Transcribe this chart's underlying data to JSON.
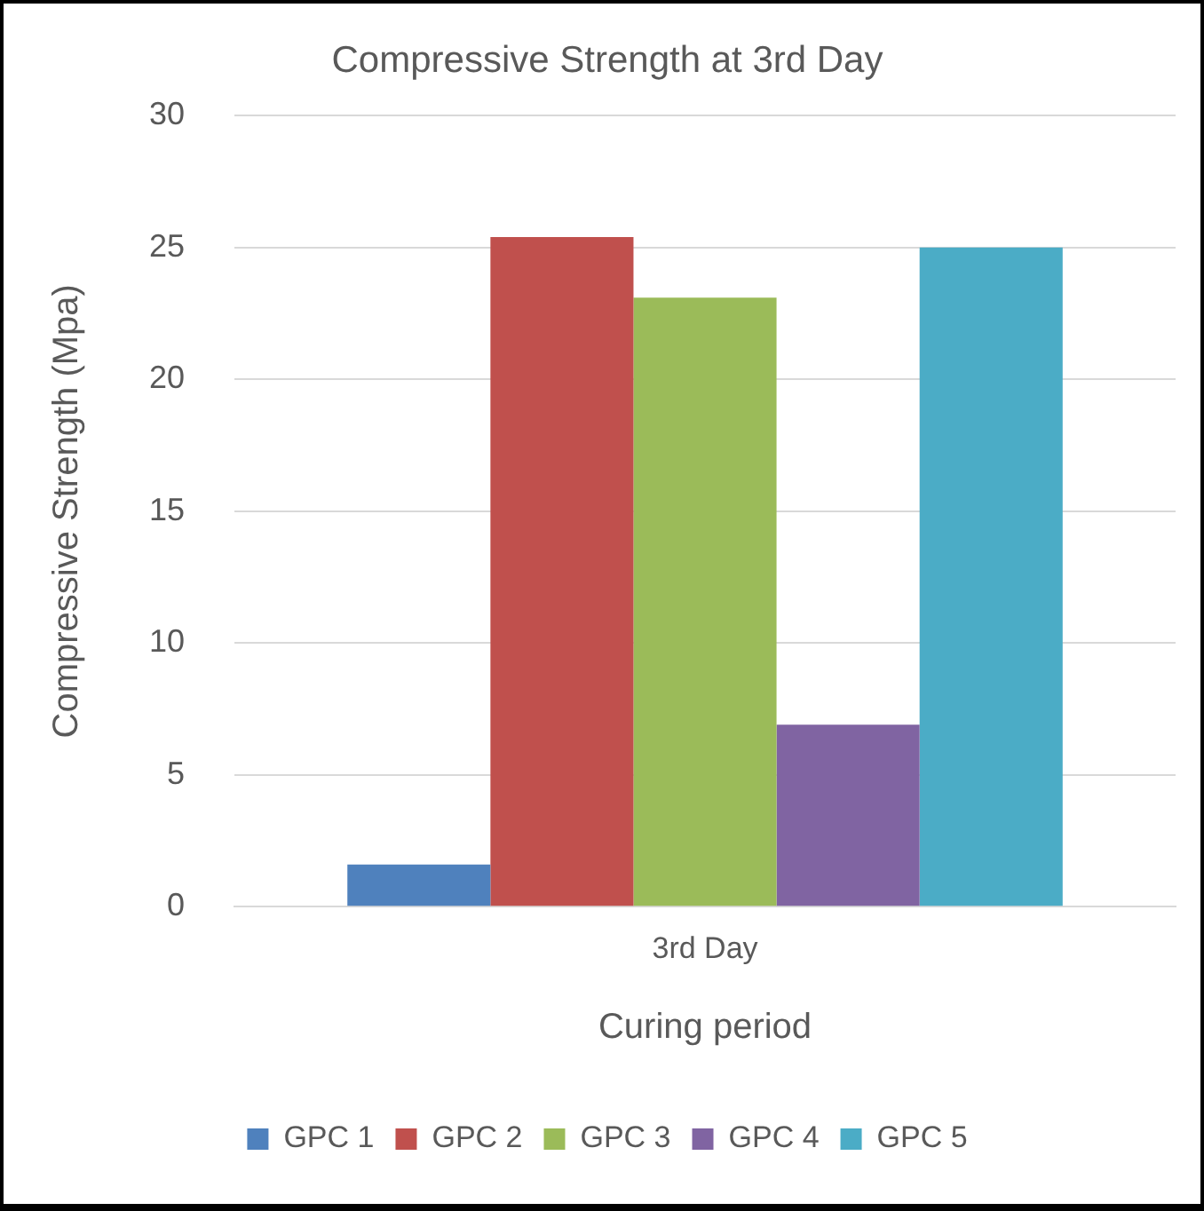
{
  "chart_data": {
    "type": "bar",
    "title": "Compressive Strength at 3rd Day",
    "xlabel": "Curing period",
    "ylabel": "Compressive Strength (Mpa)",
    "categories": [
      "3rd Day"
    ],
    "series": [
      {
        "name": "GPC 1",
        "color": "#4f81bd",
        "values": [
          1.6
        ]
      },
      {
        "name": "GPC 2",
        "color": "#c0504d",
        "values": [
          25.4
        ]
      },
      {
        "name": "GPC 3",
        "color": "#9bbb59",
        "values": [
          23.1
        ]
      },
      {
        "name": "GPC 4",
        "color": "#8064a2",
        "values": [
          6.9
        ]
      },
      {
        "name": "GPC 5",
        "color": "#4bacc6",
        "values": [
          25.0
        ]
      }
    ],
    "ylim": [
      0,
      30
    ],
    "yticks": [
      0,
      5,
      10,
      15,
      20,
      25,
      30
    ],
    "grid": "y",
    "legend": "bottom"
  }
}
